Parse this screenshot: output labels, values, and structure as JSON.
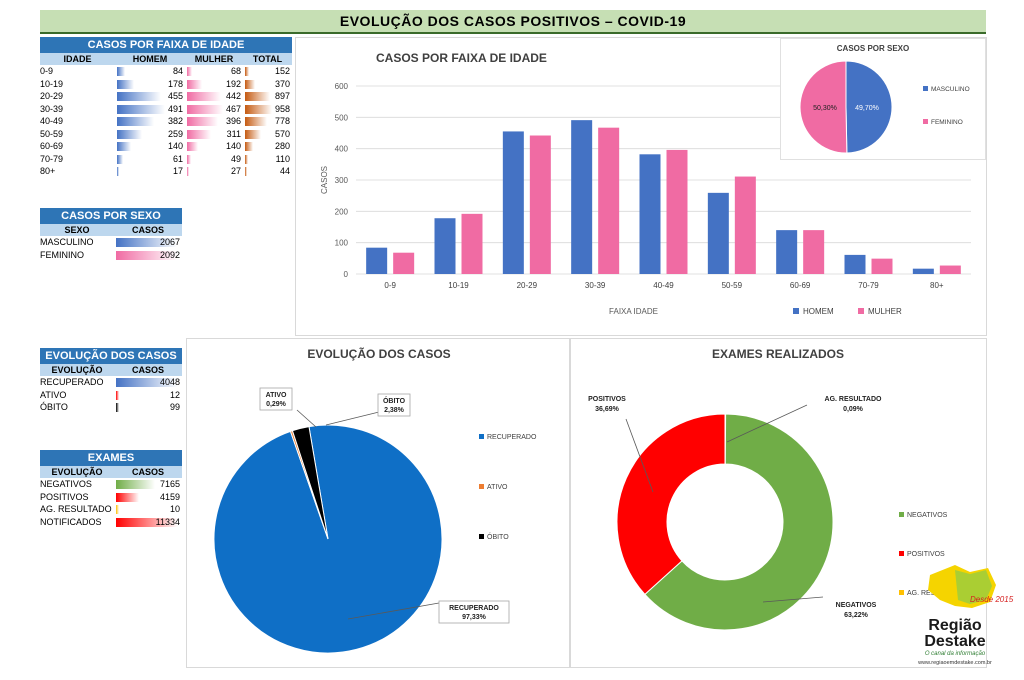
{
  "title": "EVOLUÇÃO DOS  CASOS POSITIVOS – COVID-19",
  "age_table": {
    "header": "CASOS POR FAIXA DE IDADE",
    "columns": [
      "IDADE",
      "HOMEM",
      "MULHER",
      "TOTAL"
    ],
    "rows": [
      {
        "age": "0-9",
        "homem": "84",
        "mulher": "68",
        "total": "152"
      },
      {
        "age": "10-19",
        "homem": "178",
        "mulher": "192",
        "total": "370"
      },
      {
        "age": "20-29",
        "homem": "455",
        "mulher": "442",
        "total": "897"
      },
      {
        "age": "30-39",
        "homem": "491",
        "mulher": "467",
        "total": "958"
      },
      {
        "age": "40-49",
        "homem": "382",
        "mulher": "396",
        "total": "778"
      },
      {
        "age": "50-59",
        "homem": "259",
        "mulher": "311",
        "total": "570"
      },
      {
        "age": "60-69",
        "homem": "140",
        "mulher": "140",
        "total": "280"
      },
      {
        "age": "70-79",
        "homem": "61",
        "mulher": "49",
        "total": "110"
      },
      {
        "age": "80+",
        "homem": "17",
        "mulher": "27",
        "total": "44"
      }
    ]
  },
  "sex_table": {
    "header": "CASOS POR SEXO",
    "columns": [
      "SEXO",
      "CASOS"
    ],
    "rows": [
      {
        "label": "MASCULINO",
        "value": "2067"
      },
      {
        "label": "FEMININO",
        "value": "2092"
      }
    ]
  },
  "evolution_table": {
    "header": "EVOLUÇÃO DOS CASOS",
    "columns": [
      "EVOLUÇÃO",
      "CASOS"
    ],
    "rows": [
      {
        "label": "RECUPERADO",
        "value": "4048"
      },
      {
        "label": "ATIVO",
        "value": "12"
      },
      {
        "label": "ÓBITO",
        "value": "99"
      }
    ]
  },
  "exams_table": {
    "header": "EXAMES",
    "columns": [
      "EVOLUÇÃO",
      "CASOS"
    ],
    "rows": [
      {
        "label": "NEGATIVOS",
        "value": "7165"
      },
      {
        "label": "POSITIVOS",
        "value": "4159"
      },
      {
        "label": "AG. RESULTADO",
        "value": "10"
      },
      {
        "label": "NOTIFICADOS",
        "value": "11334"
      }
    ]
  },
  "colors": {
    "homem": "#4472c4",
    "mulher": "#f06ba3",
    "total": "#c55a11",
    "recuperado": "#0f6fc6",
    "ativo": "#ed7d31",
    "obito": "#000000",
    "negativos": "#70ad47",
    "positivos": "#ff0000",
    "ag_resultado": "#ffc000",
    "header_blue": "#2e75b6"
  },
  "chart_data": [
    {
      "type": "bar",
      "title": "CASOS POR FAIXA DE IDADE",
      "xlabel": "FAIXA IDADE",
      "ylabel": "CASOS",
      "categories": [
        "0-9",
        "10-19",
        "20-29",
        "30-39",
        "40-49",
        "50-59",
        "60-69",
        "70-79",
        "80+"
      ],
      "series": [
        {
          "name": "HOMEM",
          "values": [
            84,
            178,
            455,
            491,
            382,
            259,
            140,
            61,
            17
          ]
        },
        {
          "name": "MULHER",
          "values": [
            68,
            192,
            442,
            467,
            396,
            311,
            140,
            49,
            27
          ]
        }
      ],
      "ylim": [
        0,
        600
      ],
      "yticks": [
        "0",
        "100",
        "200",
        "300",
        "400",
        "500",
        "600"
      ],
      "grid": true,
      "legend": "bottom-right"
    },
    {
      "type": "pie",
      "title": "CASOS POR SEXO",
      "labels": [
        "MASCULINO",
        "FEMININO"
      ],
      "values": [
        49.7,
        50.3
      ],
      "data_labels": [
        "49,70%",
        "50,30%"
      ],
      "legend": "right"
    },
    {
      "type": "pie",
      "title": "EVOLUÇÃO DOS CASOS",
      "labels": [
        "RECUPERADO",
        "ATIVO",
        "ÓBITO"
      ],
      "values": [
        97.33,
        0.29,
        2.38
      ],
      "data_labels": [
        "RECUPERADO\n97,33%",
        "ATIVO\n0,29%",
        "ÓBITO\n2,38%"
      ],
      "legend": "right"
    },
    {
      "type": "pie",
      "title": "EXAMES REALIZADOS",
      "labels": [
        "NEGATIVOS",
        "POSITIVOS",
        "AG. RESULTADO"
      ],
      "values": [
        63.22,
        36.69,
        0.09
      ],
      "data_labels": [
        "NEGATIVOS\n63,22%",
        "POSITIVOS\n36,69%",
        "AG. RESULTADO\n0,09%"
      ],
      "donut": true,
      "legend": "right"
    }
  ],
  "logo": {
    "line1": "Região",
    "line2": "Destake",
    "tagline": "O canal da informação",
    "url": "www.regiaoemdestake.com.br",
    "year_tag": "Desde 2015"
  }
}
